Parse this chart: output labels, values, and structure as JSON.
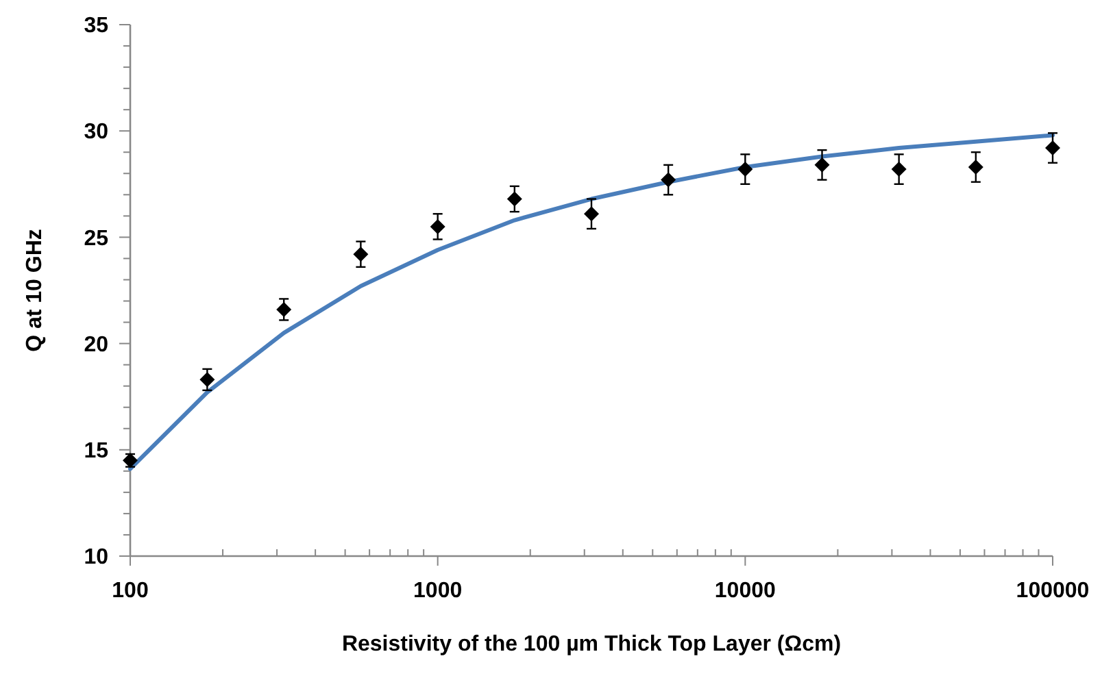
{
  "chart_data": {
    "type": "scatter",
    "xlabel": "Resistivity of  the 100 µm Thick Top Layer (Ωcm)",
    "ylabel": "Q  at  10 GHz",
    "log": "x",
    "grid": false,
    "xlim": [
      100,
      100000
    ],
    "ylim": [
      10,
      35
    ],
    "xticks": [
      100,
      {
        "value": 200,
        "label": null
      },
      {
        "value": 300,
        "label": null
      },
      {
        "value": 400,
        "label": null
      },
      {
        "value": 500,
        "label": null
      },
      {
        "value": 600,
        "label": null
      },
      {
        "value": 700,
        "label": null
      },
      {
        "value": 800,
        "label": null
      },
      {
        "value": 900,
        "label": null
      },
      1000,
      {
        "value": 2000,
        "label": null
      },
      {
        "value": 3000,
        "label": null
      },
      {
        "value": 4000,
        "label": null
      },
      {
        "value": 5000,
        "label": null
      },
      {
        "value": 6000,
        "label": null
      },
      {
        "value": 7000,
        "label": null
      },
      {
        "value": 8000,
        "label": null
      },
      {
        "value": 9000,
        "label": null
      },
      10000,
      {
        "value": 20000,
        "label": null
      },
      {
        "value": 30000,
        "label": null
      },
      {
        "value": 40000,
        "label": null
      },
      {
        "value": 50000,
        "label": null
      },
      {
        "value": 60000,
        "label": null
      },
      {
        "value": 70000,
        "label": null
      },
      {
        "value": 80000,
        "label": null
      },
      {
        "value": 90000,
        "label": null
      },
      100000
    ],
    "yticks": [
      10,
      {
        "value": 11,
        "label": null
      },
      {
        "value": 12,
        "label": null
      },
      {
        "value": 13,
        "label": null
      },
      {
        "value": 14,
        "label": null
      },
      15,
      {
        "value": 16,
        "label": null
      },
      {
        "value": 17,
        "label": null
      },
      {
        "value": 18,
        "label": null
      },
      {
        "value": 19,
        "label": null
      },
      20,
      {
        "value": 21,
        "label": null
      },
      {
        "value": 22,
        "label": null
      },
      {
        "value": 23,
        "label": null
      },
      {
        "value": 24,
        "label": null
      },
      25,
      {
        "value": 26,
        "label": null
      },
      {
        "value": 27,
        "label": null
      },
      {
        "value": 28,
        "label": null
      },
      {
        "value": 29,
        "label": null
      },
      30,
      {
        "value": 31,
        "label": null
      },
      {
        "value": 32,
        "label": null
      },
      {
        "value": 33,
        "label": null
      },
      {
        "value": 34,
        "label": null
      },
      35
    ],
    "series": [
      {
        "type": "line",
        "color": "#4a7ebb",
        "marker": "none",
        "line_style": "solid",
        "x": [
          100,
          178,
          316,
          562,
          1000,
          1778,
          3162,
          5623,
          10000,
          17783,
          31623,
          56234,
          100000
        ],
        "values": [
          14.1,
          17.7,
          20.5,
          22.7,
          24.4,
          25.8,
          26.8,
          27.6,
          28.3,
          28.8,
          29.2,
          29.5,
          29.8
        ]
      },
      {
        "color": "#000000",
        "marker": "diamond",
        "x": [
          100,
          178,
          316,
          562,
          1000,
          1778,
          3162,
          5623,
          10000,
          17783,
          31623,
          56234,
          100000
        ],
        "values": [
          14.5,
          18.3,
          21.6,
          24.2,
          25.5,
          26.8,
          26.1,
          27.7,
          28.2,
          28.4,
          28.2,
          28.3,
          29.2
        ],
        "errors": [
          0.3,
          0.5,
          0.5,
          0.6,
          0.6,
          0.6,
          0.7,
          0.7,
          0.7,
          0.7,
          0.7,
          0.7,
          0.7
        ]
      }
    ]
  }
}
